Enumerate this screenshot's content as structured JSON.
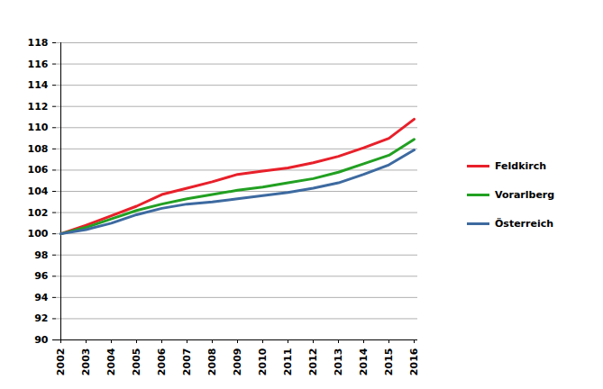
{
  "chart_data": {
    "type": "line",
    "categories": [
      "2002",
      "2003",
      "2004",
      "2005",
      "2006",
      "2007",
      "2008",
      "2009",
      "2010",
      "2011",
      "2012",
      "2013",
      "2014",
      "2015",
      "2016"
    ],
    "series": [
      {
        "name": "Feldkirch",
        "color": "#e8202a",
        "values": [
          100,
          100.8,
          101.7,
          102.6,
          103.7,
          104.3,
          104.9,
          105.6,
          105.9,
          106.2,
          106.7,
          107.3,
          108.1,
          109.0,
          110.8
        ]
      },
      {
        "name": "Vorarlberg",
        "color": "#22a022",
        "values": [
          100,
          100.6,
          101.4,
          102.2,
          102.8,
          103.3,
          103.7,
          104.1,
          104.4,
          104.8,
          105.2,
          105.8,
          106.6,
          107.4,
          108.9
        ]
      },
      {
        "name": "Österreich",
        "color": "#3d6aa0",
        "values": [
          100,
          100.4,
          101.0,
          101.8,
          102.4,
          102.8,
          103.0,
          103.3,
          103.6,
          103.9,
          104.3,
          104.8,
          105.6,
          106.5,
          107.9
        ]
      }
    ],
    "ylim": [
      90,
      118
    ],
    "yticks": [
      90,
      92,
      94,
      96,
      98,
      100,
      102,
      104,
      106,
      108,
      110,
      112,
      114,
      116,
      118
    ],
    "grid": true,
    "legend": "right"
  }
}
